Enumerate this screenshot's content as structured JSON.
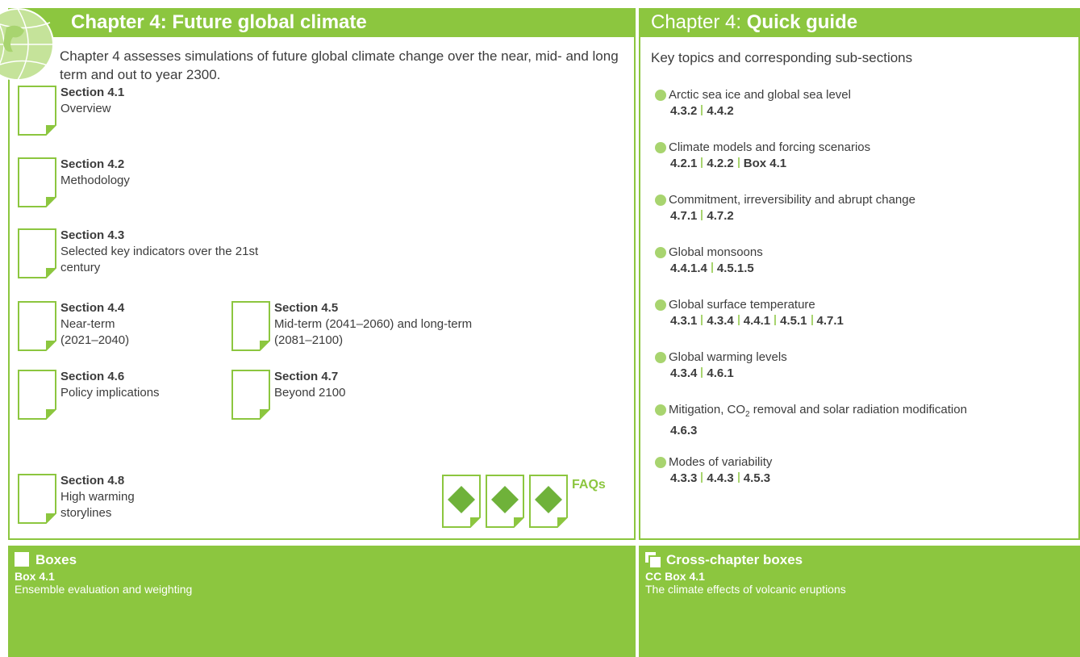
{
  "left": {
    "title": "Chapter 4: Future global climate",
    "intro": "Chapter 4 assesses simulations of future global climate change over the near, mid- and long term and out to year 2300.",
    "sections": [
      {
        "label": "Section 4.1",
        "title": "Overview"
      },
      {
        "label": "Section 4.2",
        "title": "Methodology"
      },
      {
        "label": "Section 4.3",
        "title": "Selected key indicators over the 21st century"
      },
      {
        "label": "Section 4.4",
        "title": "Near-term (2021–2040)"
      },
      {
        "label": "Section 4.5",
        "title": "Mid-term (2041–2060) and long-term (2081–2100)"
      },
      {
        "label": "Section 4.6",
        "title": "Policy implications"
      },
      {
        "label": "Section 4.7",
        "title": "Beyond 2100"
      },
      {
        "label": "Section 4.8",
        "title": "High warming storylines"
      }
    ],
    "faqs": "FAQs"
  },
  "right": {
    "title_prefix": "Chapter 4:",
    "title_bold": "Quick guide",
    "subtitle": "Key topics and corresponding sub-sections",
    "topics": [
      {
        "label": "Arctic sea ice and global sea level",
        "refs": [
          "4.3.2",
          "4.4.2"
        ]
      },
      {
        "label": "Climate models and forcing scenarios",
        "refs": [
          "4.2.1",
          "4.2.2",
          "Box 4.1"
        ]
      },
      {
        "label": "Commitment, irreversibility and abrupt change",
        "refs": [
          "4.7.1",
          "4.7.2"
        ]
      },
      {
        "label": "Global monsoons",
        "refs": [
          "4.4.1.4",
          "4.5.1.5"
        ]
      },
      {
        "label": "Global surface temperature",
        "refs": [
          "4.3.1",
          "4.3.4",
          "4.4.1",
          "4.5.1",
          "4.7.1"
        ]
      },
      {
        "label": "Global warming levels",
        "refs": [
          "4.3.4",
          "4.6.1"
        ]
      },
      {
        "label": "Mitigation, CO",
        "label_sub": "2",
        "label_after": " removal and solar radiation modification",
        "refs": [
          "4.6.3"
        ]
      },
      {
        "label": "Modes of variability",
        "refs": [
          "4.3.3",
          "4.4.3",
          "4.5.3"
        ]
      }
    ]
  },
  "boxes": {
    "title": "Boxes",
    "items": [
      {
        "label": "Box 4.1",
        "title": "Ensemble evaluation and weighting"
      }
    ]
  },
  "cross_chapter_boxes": {
    "title": "Cross-chapter boxes",
    "items": [
      {
        "label": "CC Box 4.1",
        "title": "The climate effects of volcanic eruptions"
      }
    ]
  }
}
